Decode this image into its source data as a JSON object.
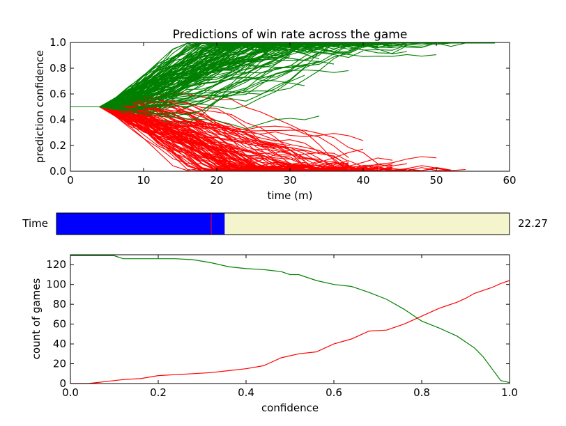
{
  "chart_data": [
    {
      "type": "line",
      "title": "Predictions of win rate across the game",
      "xlabel": "time (m)",
      "ylabel": "prediction confidence",
      "xlim": [
        0,
        60
      ],
      "ylim": [
        0,
        1.0
      ],
      "xticks": [
        "0",
        "10",
        "20",
        "30",
        "40",
        "50",
        "60"
      ],
      "yticks": [
        "0.0",
        "0.2",
        "0.4",
        "0.6",
        "0.8",
        "1.0"
      ],
      "grid": false,
      "colors": {
        "win": "#008000",
        "loss": "#ff0000"
      },
      "note": "Many per-game trajectories starting at 0.5; green = won games, red = lost games"
    },
    {
      "type": "bar",
      "label": "Time",
      "value_text": "22.27",
      "range": [
        0,
        60
      ],
      "value": 22.27,
      "marker": 20.5,
      "colors": {
        "fill": "#0000ff",
        "rest": "#f5f5cd",
        "marker": "#ff0000"
      }
    },
    {
      "type": "line",
      "xlabel": "confidence",
      "ylabel": "count of games",
      "xlim": [
        0,
        1.0
      ],
      "ylim": [
        0,
        130
      ],
      "xticks": [
        "0.0",
        "0.2",
        "0.4",
        "0.6",
        "0.8",
        "1.0"
      ],
      "yticks": [
        "0",
        "20",
        "40",
        "60",
        "80",
        "100",
        "120"
      ],
      "grid": false,
      "series": [
        {
          "color": "#008000",
          "x": [
            0,
            0.05,
            0.1,
            0.12,
            0.2,
            0.24,
            0.28,
            0.32,
            0.36,
            0.4,
            0.44,
            0.48,
            0.5,
            0.52,
            0.56,
            0.6,
            0.64,
            0.68,
            0.72,
            0.76,
            0.8,
            0.84,
            0.88,
            0.9,
            0.92,
            0.94,
            0.96,
            0.98,
            1.0
          ],
          "y": [
            129,
            129,
            129,
            126,
            126,
            126,
            125,
            122,
            118,
            116,
            115,
            113,
            110,
            110,
            104,
            100,
            98,
            92,
            85,
            75,
            63,
            56,
            48,
            42,
            36,
            27,
            15,
            3,
            1
          ]
        },
        {
          "color": "#ff0000",
          "x": [
            0,
            0.04,
            0.06,
            0.08,
            0.12,
            0.16,
            0.2,
            0.24,
            0.28,
            0.32,
            0.36,
            0.4,
            0.44,
            0.48,
            0.52,
            0.56,
            0.6,
            0.64,
            0.68,
            0.72,
            0.76,
            0.8,
            0.84,
            0.88,
            0.9,
            0.92,
            0.94,
            0.96,
            0.98,
            1.0
          ],
          "y": [
            0,
            0,
            1,
            2,
            4,
            5,
            8,
            9,
            10,
            11,
            13,
            15,
            18,
            26,
            30,
            32,
            40,
            45,
            53,
            54,
            60,
            68,
            76,
            82,
            86,
            91,
            94,
            97,
            101,
            104
          ]
        }
      ]
    }
  ]
}
